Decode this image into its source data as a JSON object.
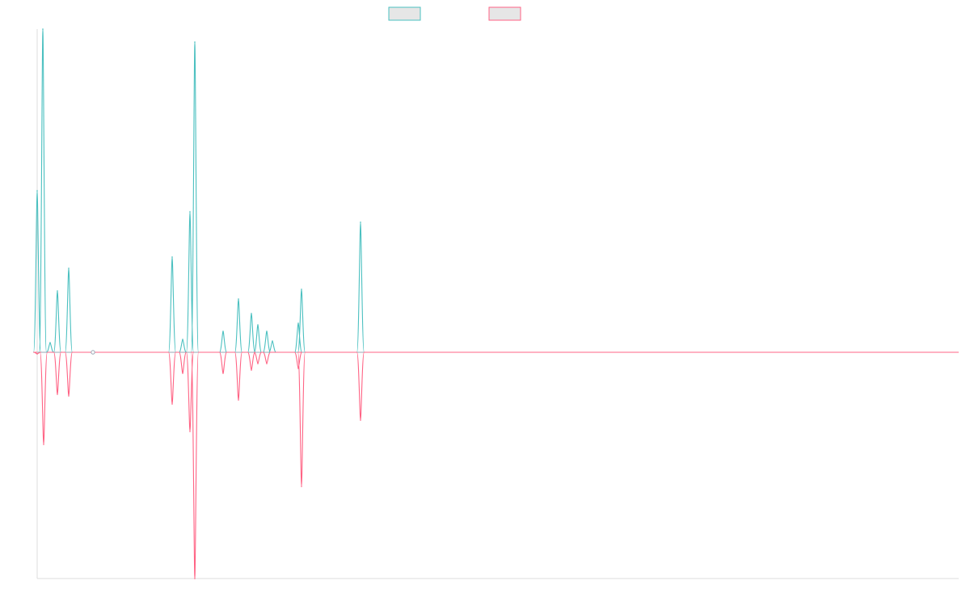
{
  "chart_data": {
    "type": "line",
    "title": "",
    "xlabel": "",
    "ylabel": "",
    "grid": false,
    "legend": "top-center",
    "xlim": [
      0,
      1140
    ],
    "ylim": [
      -280,
      400
    ],
    "series": [
      {
        "color": "#4bc0c0",
        "fill": "#e6e6e6",
        "values": [
          [
            0,
            200
          ],
          [
            7,
            400
          ],
          [
            16,
            12
          ],
          [
            25,
            76
          ],
          [
            39,
            104
          ],
          [
            69,
            0
          ],
          [
            167,
            118
          ],
          [
            180,
            16
          ],
          [
            189,
            174
          ],
          [
            195,
            384
          ],
          [
            230,
            26
          ],
          [
            249,
            66
          ],
          [
            265,
            48
          ],
          [
            273,
            34
          ],
          [
            284,
            26
          ],
          [
            291,
            14
          ],
          [
            323,
            36
          ],
          [
            327,
            78
          ],
          [
            400,
            161
          ]
        ]
      },
      {
        "color": "#ff6384",
        "fill": "#e6e6e6",
        "values": [
          [
            0,
            -2
          ],
          [
            8,
            -114
          ],
          [
            25,
            -52
          ],
          [
            39,
            -54
          ],
          [
            167,
            -64
          ],
          [
            180,
            -26
          ],
          [
            189,
            -98
          ],
          [
            195,
            -280
          ],
          [
            230,
            -26
          ],
          [
            249,
            -59
          ],
          [
            265,
            -22
          ],
          [
            273,
            -14
          ],
          [
            284,
            -14
          ],
          [
            323,
            -20
          ],
          [
            327,
            -166
          ],
          [
            400,
            -84
          ]
        ]
      }
    ]
  }
}
